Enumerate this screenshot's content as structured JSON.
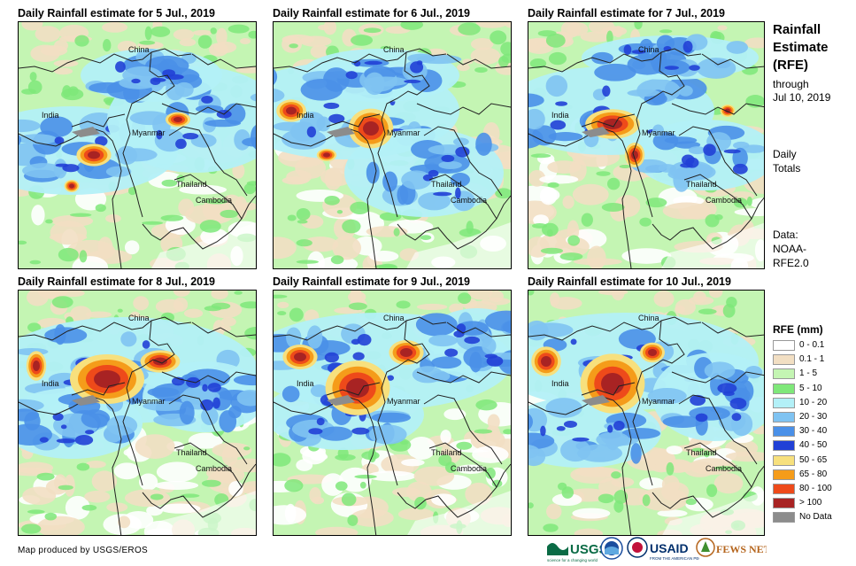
{
  "panels": [
    {
      "title": "Daily Rainfall estimate for 5 Jul., 2019"
    },
    {
      "title": "Daily Rainfall estimate for 6 Jul., 2019"
    },
    {
      "title": "Daily Rainfall estimate for 7 Jul., 2019"
    },
    {
      "title": "Daily Rainfall estimate for 8 Jul., 2019"
    },
    {
      "title": "Daily Rainfall estimate for 9 Jul., 2019"
    },
    {
      "title": "Daily Rainfall estimate for 10 Jul., 2019"
    }
  ],
  "map_labels": {
    "china": "China",
    "india": "India",
    "myanmar": "Myanmar",
    "thailand": "Thailand",
    "cambodia": "Cambodia"
  },
  "sidebar": {
    "title_lines": [
      "Rainfall",
      "Estimate",
      "(RFE)"
    ],
    "through_lines": [
      "through",
      "Jul 10, 2019"
    ],
    "daily_lines": [
      "Daily",
      "Totals"
    ],
    "data_lines": [
      "Data:",
      "NOAA-",
      "RFE2.0"
    ]
  },
  "legend": {
    "title": "RFE (mm)",
    "items": [
      {
        "label": "0 - 0.1",
        "color": "#ffffff"
      },
      {
        "label": "0.1 - 1",
        "color": "#f2dfc3"
      },
      {
        "label": "1 - 5",
        "color": "#c4f5b3"
      },
      {
        "label": "5 - 10",
        "color": "#7fe87a"
      },
      {
        "label": "10 - 20",
        "color": "#b3f0f7"
      },
      {
        "label": "20 - 30",
        "color": "#7fc3f2"
      },
      {
        "label": "30 - 40",
        "color": "#4a90e8"
      },
      {
        "label": "40 - 50",
        "color": "#2140d6"
      },
      {
        "label": "50 - 65",
        "color": "#f7e07d"
      },
      {
        "label": "65 - 80",
        "color": "#f59c1a"
      },
      {
        "label": "80 - 100",
        "color": "#ee4a1a"
      },
      {
        "label": "> 100",
        "color": "#a82323"
      },
      {
        "label": "No Data",
        "color": "#8c8c8c"
      }
    ]
  },
  "credit": "Map produced by USGS/EROS",
  "logos": {
    "usgs": "USGS",
    "usaid": "USAID",
    "fewsnet": "FEWS NET"
  }
}
